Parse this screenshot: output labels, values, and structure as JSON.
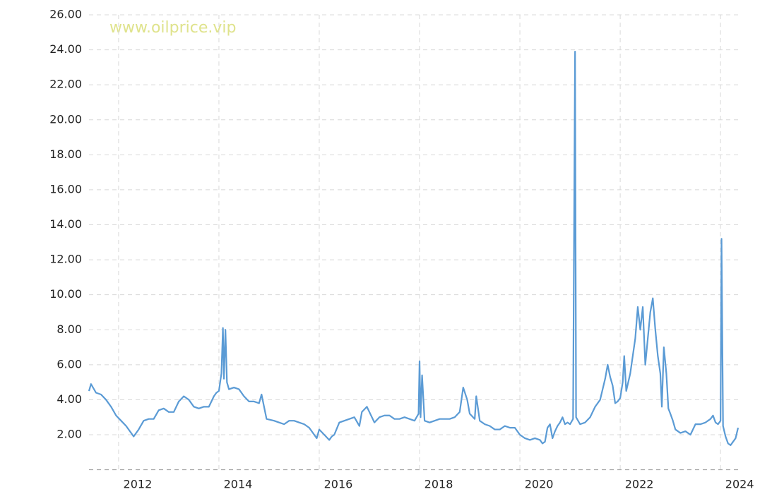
{
  "chart_data": {
    "type": "line",
    "watermark": "www.oilprice.vip",
    "x": [
      2011.41,
      2011.45,
      2011.55,
      2011.65,
      2011.75,
      2011.85,
      2011.95,
      2012.05,
      2012.15,
      2012.25,
      2012.3,
      2012.4,
      2012.5,
      2012.6,
      2012.7,
      2012.8,
      2012.9,
      2013.0,
      2013.1,
      2013.2,
      2013.3,
      2013.4,
      2013.5,
      2013.6,
      2013.7,
      2013.8,
      2013.9,
      2013.95,
      2014.0,
      2014.05,
      2014.08,
      2014.1,
      2014.13,
      2014.16,
      2014.2,
      2014.3,
      2014.4,
      2014.5,
      2014.6,
      2014.7,
      2014.8,
      2014.85,
      2014.9,
      2014.95,
      2015.1,
      2015.2,
      2015.3,
      2015.4,
      2015.5,
      2015.6,
      2015.7,
      2015.8,
      2015.9,
      2015.95,
      2016.0,
      2016.1,
      2016.2,
      2016.25,
      2016.3,
      2016.4,
      2016.5,
      2016.6,
      2016.7,
      2016.8,
      2016.85,
      2016.95,
      2017.0,
      2017.1,
      2017.2,
      2017.3,
      2017.4,
      2017.5,
      2017.6,
      2017.7,
      2017.8,
      2017.9,
      2017.98,
      2018.0,
      2018.02,
      2018.05,
      2018.1,
      2018.2,
      2018.3,
      2018.4,
      2018.5,
      2018.6,
      2018.7,
      2018.8,
      2018.87,
      2018.95,
      2019.0,
      2019.1,
      2019.13,
      2019.2,
      2019.3,
      2019.4,
      2019.5,
      2019.6,
      2019.7,
      2019.8,
      2019.9,
      2020.0,
      2020.1,
      2020.2,
      2020.3,
      2020.4,
      2020.45,
      2020.5,
      2020.55,
      2020.6,
      2020.65,
      2020.7,
      2020.75,
      2020.8,
      2020.85,
      2020.9,
      2020.95,
      2021.0,
      2021.06,
      2021.1,
      2021.12,
      2021.2,
      2021.3,
      2021.4,
      2021.5,
      2021.6,
      2021.7,
      2021.75,
      2021.8,
      2021.85,
      2021.9,
      2021.95,
      2022.0,
      2022.05,
      2022.08,
      2022.12,
      2022.2,
      2022.3,
      2022.35,
      2022.4,
      2022.45,
      2022.5,
      2022.55,
      2022.6,
      2022.65,
      2022.7,
      2022.75,
      2022.8,
      2022.83,
      2022.87,
      2022.92,
      2022.96,
      2023.0,
      2023.05,
      2023.1,
      2023.2,
      2023.3,
      2023.4,
      2023.5,
      2023.6,
      2023.7,
      2023.8,
      2023.85,
      2023.9,
      2023.95,
      2024.0,
      2024.02,
      2024.05,
      2024.1,
      2024.15,
      2024.2,
      2024.25,
      2024.3,
      2024.35
    ],
    "values": [
      4.5,
      4.9,
      4.4,
      4.3,
      4.0,
      3.6,
      3.1,
      2.8,
      2.5,
      2.1,
      1.9,
      2.3,
      2.8,
      2.9,
      2.9,
      3.4,
      3.5,
      3.3,
      3.3,
      3.9,
      4.2,
      4.0,
      3.6,
      3.5,
      3.6,
      3.6,
      4.2,
      4.4,
      4.5,
      5.5,
      8.1,
      5.2,
      8.0,
      5.0,
      4.6,
      4.7,
      4.6,
      4.2,
      3.9,
      3.9,
      3.8,
      4.3,
      3.6,
      2.9,
      2.8,
      2.7,
      2.6,
      2.8,
      2.8,
      2.7,
      2.6,
      2.4,
      2.0,
      1.8,
      2.3,
      2.0,
      1.7,
      1.9,
      2.0,
      2.7,
      2.8,
      2.9,
      3.0,
      2.5,
      3.3,
      3.6,
      3.3,
      2.7,
      3.0,
      3.1,
      3.1,
      2.9,
      2.9,
      3.0,
      2.9,
      2.8,
      3.2,
      6.2,
      3.0,
      5.4,
      2.8,
      2.7,
      2.8,
      2.9,
      2.9,
      2.9,
      3.0,
      3.3,
      4.7,
      4.0,
      3.2,
      2.9,
      4.2,
      2.8,
      2.6,
      2.5,
      2.3,
      2.3,
      2.5,
      2.4,
      2.4,
      2.0,
      1.8,
      1.7,
      1.8,
      1.7,
      1.5,
      1.6,
      2.4,
      2.6,
      1.8,
      2.2,
      2.5,
      2.7,
      3.0,
      2.6,
      2.7,
      2.6,
      2.9,
      23.9,
      3.0,
      2.6,
      2.7,
      3.0,
      3.6,
      4.0,
      5.2,
      6.0,
      5.3,
      4.8,
      3.8,
      3.9,
      4.1,
      5.0,
      6.5,
      4.5,
      5.5,
      7.5,
      9.3,
      8.0,
      9.3,
      6.0,
      7.5,
      9.0,
      9.8,
      8.0,
      6.5,
      5.5,
      3.6,
      7.0,
      5.5,
      3.5,
      3.2,
      2.8,
      2.3,
      2.1,
      2.2,
      2.0,
      2.6,
      2.6,
      2.7,
      2.9,
      3.1,
      2.7,
      2.6,
      2.8,
      13.2,
      2.5,
      1.9,
      1.5,
      1.4,
      1.6,
      1.8,
      2.4
    ],
    "color": "#5b9bd5",
    "xlim": [
      2011.41,
      2024.35
    ],
    "xticks": [
      2012,
      2014,
      2016,
      2018,
      2020,
      2022,
      2024
    ],
    "ylim": [
      0,
      26
    ],
    "yticks": [
      {
        "value": 2,
        "label": "2.00"
      },
      {
        "value": 4,
        "label": "4.00"
      },
      {
        "value": 6,
        "label": "6.00"
      },
      {
        "value": 8,
        "label": "8.00"
      },
      {
        "value": 10,
        "label": "10.00"
      },
      {
        "value": 12,
        "label": "12.00"
      },
      {
        "value": 14,
        "label": "14.00"
      },
      {
        "value": 16,
        "label": "16.00"
      },
      {
        "value": 18,
        "label": "18.00"
      },
      {
        "value": 20,
        "label": "20.00"
      },
      {
        "value": 22,
        "label": "22.00"
      },
      {
        "value": 24,
        "label": "24.00"
      },
      {
        "value": 26,
        "label": "26.00"
      }
    ],
    "grid": true
  }
}
